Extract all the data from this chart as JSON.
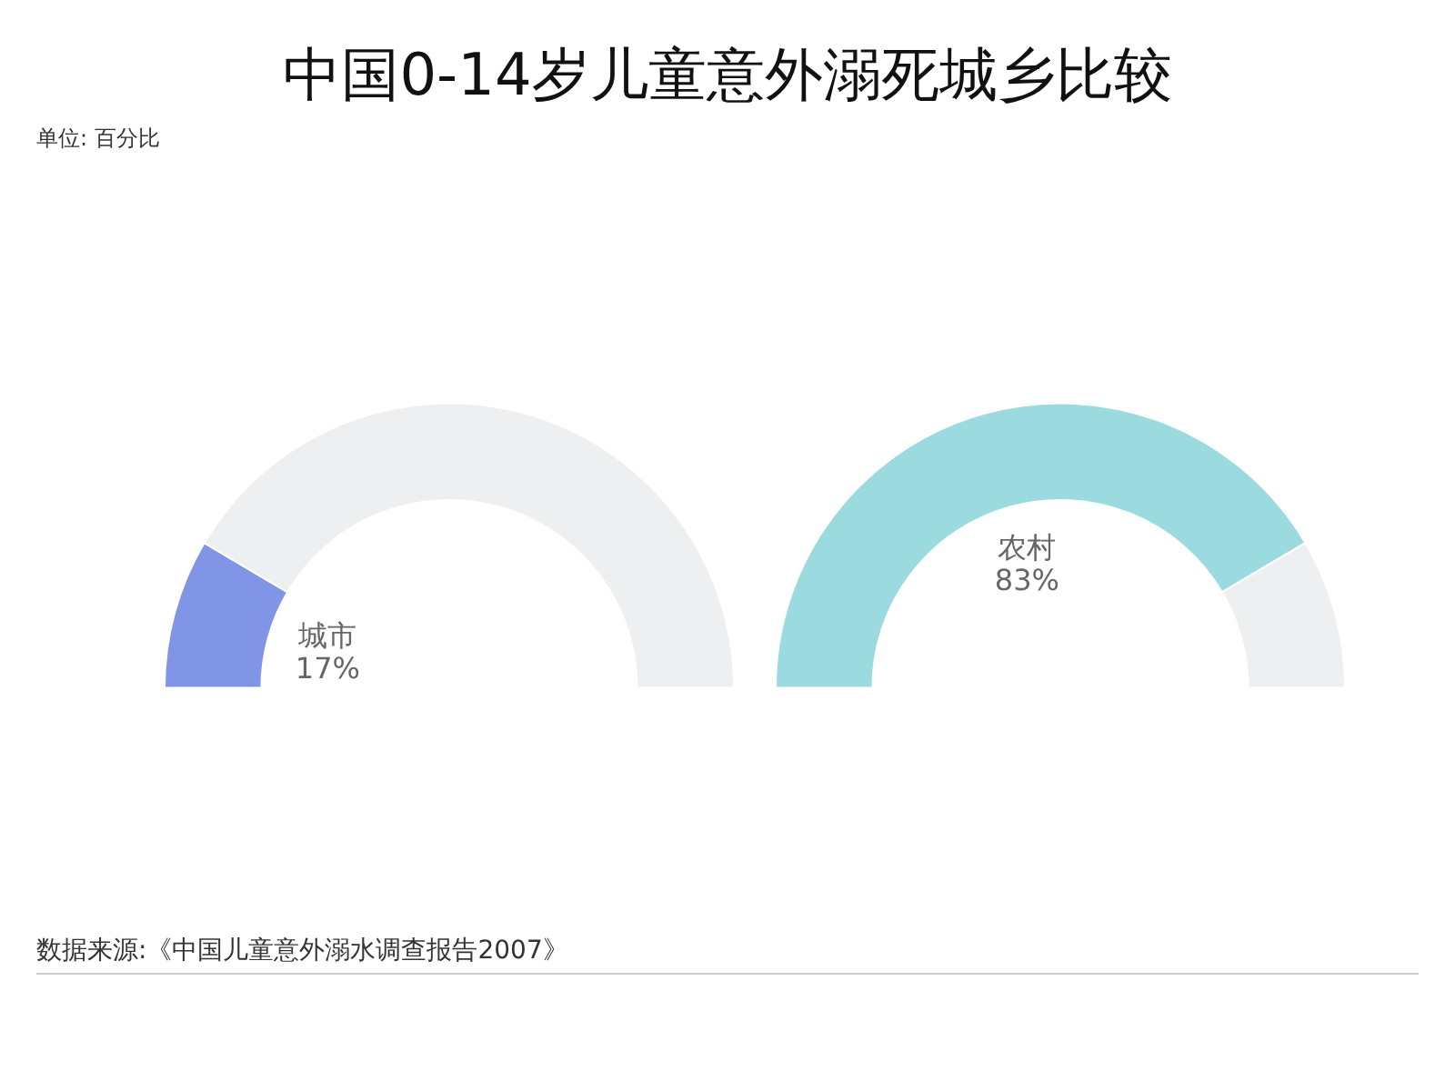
{
  "chart_data": [
    {
      "type": "donut",
      "title": "中国0-14岁儿童意外溺死城乡比较",
      "subtitle": "单位: 百分比",
      "categories": [
        "城市",
        null
      ],
      "values": [
        17,
        83
      ],
      "colors": [
        "#8095e6",
        "#eeeff1"
      ],
      "value_labels": [
        "17%",
        null
      ],
      "legend": false
    },
    {
      "type": "donut",
      "categories": [
        "农村",
        null
      ],
      "values": [
        83,
        17
      ],
      "colors": [
        "#9bdbe0",
        "#eeeff1"
      ],
      "value_labels": [
        "83%",
        null
      ],
      "legend": false,
      "annotations": [
        "数据来源:《中国儿童意外溺水调查报告2007》"
      ]
    }
  ]
}
